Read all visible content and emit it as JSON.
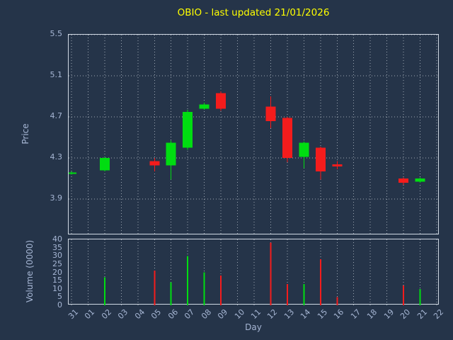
{
  "colors": {
    "background": "#253449",
    "text": "#a6b6d4",
    "title": "#ffff00",
    "grid": "#dfe6ee",
    "spine": "#cfd8e3",
    "up": "#00dd11",
    "down": "#f41c1c"
  },
  "chart_data": {
    "type": "candlestick",
    "title": "OBIO - last updated 21/01/2026",
    "xlabel": "Day",
    "price_ylabel": "Price",
    "volume_ylabel": "Volume (0000)",
    "x_ticks": [
      "31",
      "01",
      "02",
      "03",
      "04",
      "05",
      "06",
      "07",
      "08",
      "09",
      "10",
      "11",
      "12",
      "13",
      "14",
      "15",
      "16",
      "17",
      "18",
      "19",
      "20",
      "21",
      "22"
    ],
    "price_ticks": [
      3.9,
      4.3,
      4.7,
      5.1,
      5.5
    ],
    "price_ylim": [
      3.55,
      5.5
    ],
    "volume_ticks": [
      0,
      5,
      10,
      15,
      20,
      25,
      30,
      35,
      40
    ],
    "volume_ylim": [
      0,
      40
    ],
    "grid": "dotted",
    "candles": [
      {
        "day": "31",
        "open": 4.15,
        "high": 4.17,
        "low": 4.14,
        "close": 4.16,
        "volume": 0
      },
      {
        "day": "02",
        "open": 4.18,
        "high": 4.31,
        "low": 4.17,
        "close": 4.3,
        "volume": 17
      },
      {
        "day": "05",
        "open": 4.27,
        "high": 4.3,
        "low": 4.17,
        "close": 4.23,
        "volume": 21
      },
      {
        "day": "06",
        "open": 4.23,
        "high": 4.47,
        "low": 4.09,
        "close": 4.45,
        "volume": 14
      },
      {
        "day": "07",
        "open": 4.4,
        "high": 4.77,
        "low": 4.38,
        "close": 4.75,
        "volume": 30
      },
      {
        "day": "08",
        "open": 4.78,
        "high": 4.84,
        "low": 4.77,
        "close": 4.82,
        "volume": 20
      },
      {
        "day": "09",
        "open": 4.93,
        "high": 4.95,
        "low": 4.76,
        "close": 4.78,
        "volume": 18
      },
      {
        "day": "12",
        "open": 4.8,
        "high": 4.9,
        "low": 4.59,
        "close": 4.66,
        "volume": 38
      },
      {
        "day": "13",
        "open": 4.69,
        "high": 4.7,
        "low": 4.26,
        "close": 4.3,
        "volume": 13
      },
      {
        "day": "14",
        "open": 4.31,
        "high": 4.46,
        "low": 4.2,
        "close": 4.45,
        "volume": 13
      },
      {
        "day": "15",
        "open": 4.4,
        "high": 4.41,
        "low": 4.09,
        "close": 4.17,
        "volume": 28
      },
      {
        "day": "16",
        "open": 4.24,
        "high": 4.27,
        "low": 4.19,
        "close": 4.22,
        "volume": 5
      },
      {
        "day": "20",
        "open": 4.1,
        "high": 4.11,
        "low": 4.04,
        "close": 4.06,
        "volume": 12
      },
      {
        "day": "21",
        "open": 4.07,
        "high": 4.11,
        "low": 4.06,
        "close": 4.1,
        "volume": 10
      }
    ]
  }
}
